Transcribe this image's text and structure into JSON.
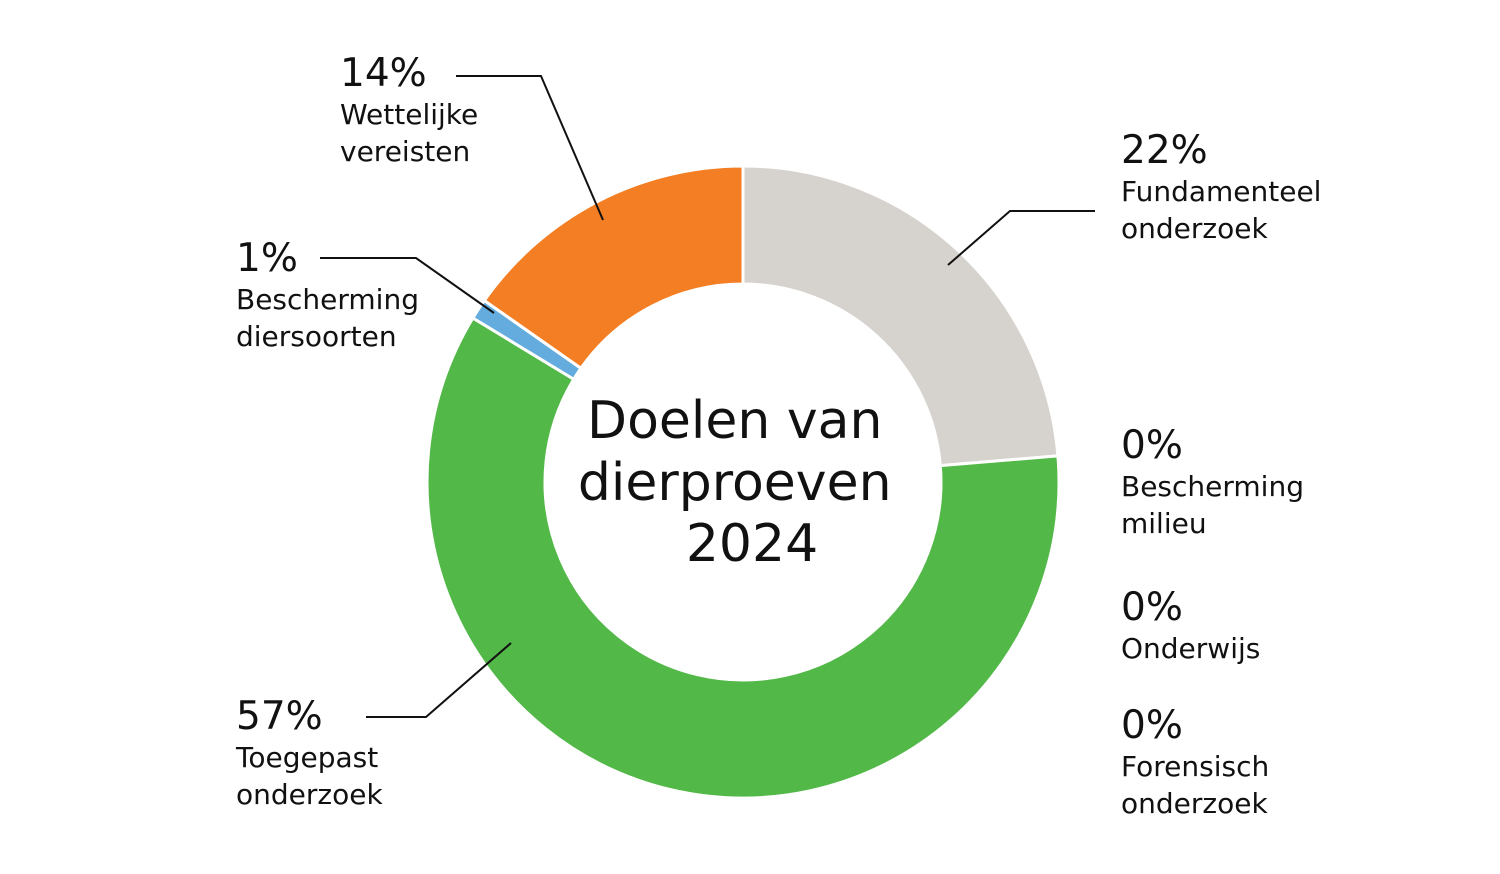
{
  "chart_data": {
    "type": "pie",
    "title_lines": [
      "Doelen van",
      "dierproeven",
      "2024"
    ],
    "slices": [
      {
        "pct_label": "22%",
        "label_lines": [
          "Fundamenteel",
          "onderzoek"
        ],
        "value": 22.5,
        "color": "#D6D2CE"
      },
      {
        "pct_label": "0%",
        "label_lines": [
          "Bescherming",
          "milieu"
        ],
        "value": 0.0,
        "color": "#3A7D44"
      },
      {
        "pct_label": "0%",
        "label_lines": [
          "Onderwijs"
        ],
        "value": 0.0,
        "color": "#E8C547"
      },
      {
        "pct_label": "0%",
        "label_lines": [
          "Forensisch",
          "onderzoek"
        ],
        "value": 0.0,
        "color": "#8E6BB3"
      },
      {
        "pct_label": "57%",
        "label_lines": [
          "Toegepast",
          "onderzoek"
        ],
        "value": 57.0,
        "color": "#52B848"
      },
      {
        "pct_label": "1%",
        "label_lines": [
          "Bescherming",
          "diersoorten"
        ],
        "value": 1.0,
        "color": "#64ACDE"
      },
      {
        "pct_label": "14%",
        "label_lines": [
          "Wettelijke",
          "vereisten"
        ],
        "value": 14.5,
        "color": "#F47E23"
      }
    ]
  }
}
